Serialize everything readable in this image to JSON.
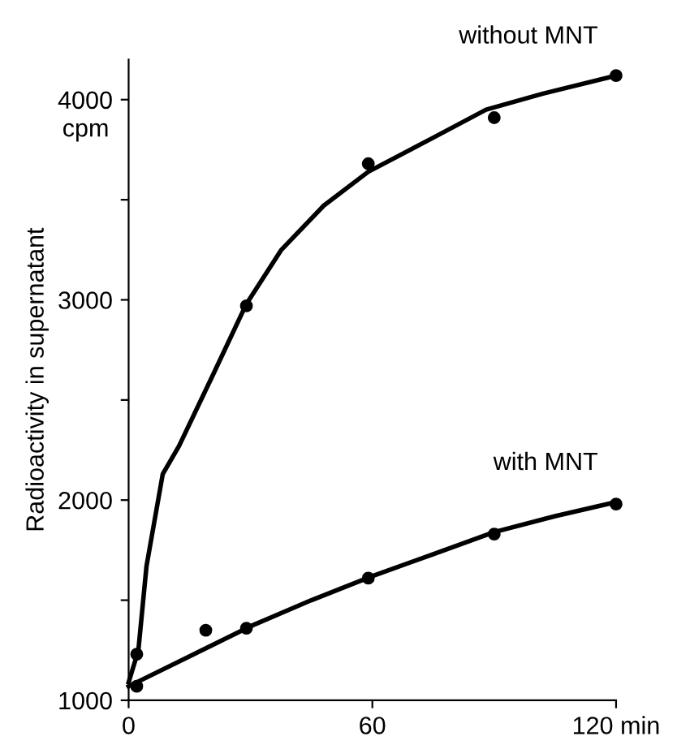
{
  "chart_data": {
    "type": "line",
    "ylabel": "Radioactivity in supernatant",
    "annotations": [
      "cpm"
    ],
    "series": [
      {
        "name": "without MNT",
        "color": "#000000",
        "marker": "none",
        "x": [
          0,
          2.4,
          4.4,
          8.4,
          12.4,
          20.4,
          29,
          37.6,
          48,
          59,
          75,
          88,
          102,
          120
        ],
        "values": [
          1090,
          1250,
          1670,
          2130,
          2270,
          2610,
          2980,
          3250,
          3470,
          3640,
          3810,
          3950,
          4030,
          4120
        ]
      },
      {
        "name": "with MNT",
        "color": "#000000",
        "marker": "none",
        "x": [
          0,
          15,
          30,
          45,
          60,
          75,
          90,
          105,
          120
        ],
        "values": [
          1070,
          1220,
          1370,
          1500,
          1620,
          1730,
          1840,
          1920,
          1990
        ]
      },
      {
        "type": "scatter",
        "color": "#000000",
        "marker": "circle",
        "x": [
          2,
          29,
          59,
          90,
          120
        ],
        "values": [
          1230,
          2970,
          3680,
          3910,
          4120
        ]
      },
      {
        "type": "scatter",
        "color": "#000000",
        "marker": "circle",
        "x": [
          2,
          19,
          29,
          59,
          90,
          120
        ],
        "values": [
          1070,
          1350,
          1360,
          1610,
          1830,
          1980
        ]
      }
    ],
    "xlim": [
      0,
      120
    ],
    "xticks": [
      0,
      60,
      {
        "value": 120,
        "label": "120 min"
      }
    ],
    "ylim": [
      1000,
      4200
    ],
    "yticks": [
      1000,
      {
        "value": 1500,
        "label": null
      },
      2000,
      {
        "value": 2500,
        "label": null
      },
      3000,
      {
        "value": 3500,
        "label": null
      },
      4000
    ],
    "grid": false,
    "legend": false
  }
}
